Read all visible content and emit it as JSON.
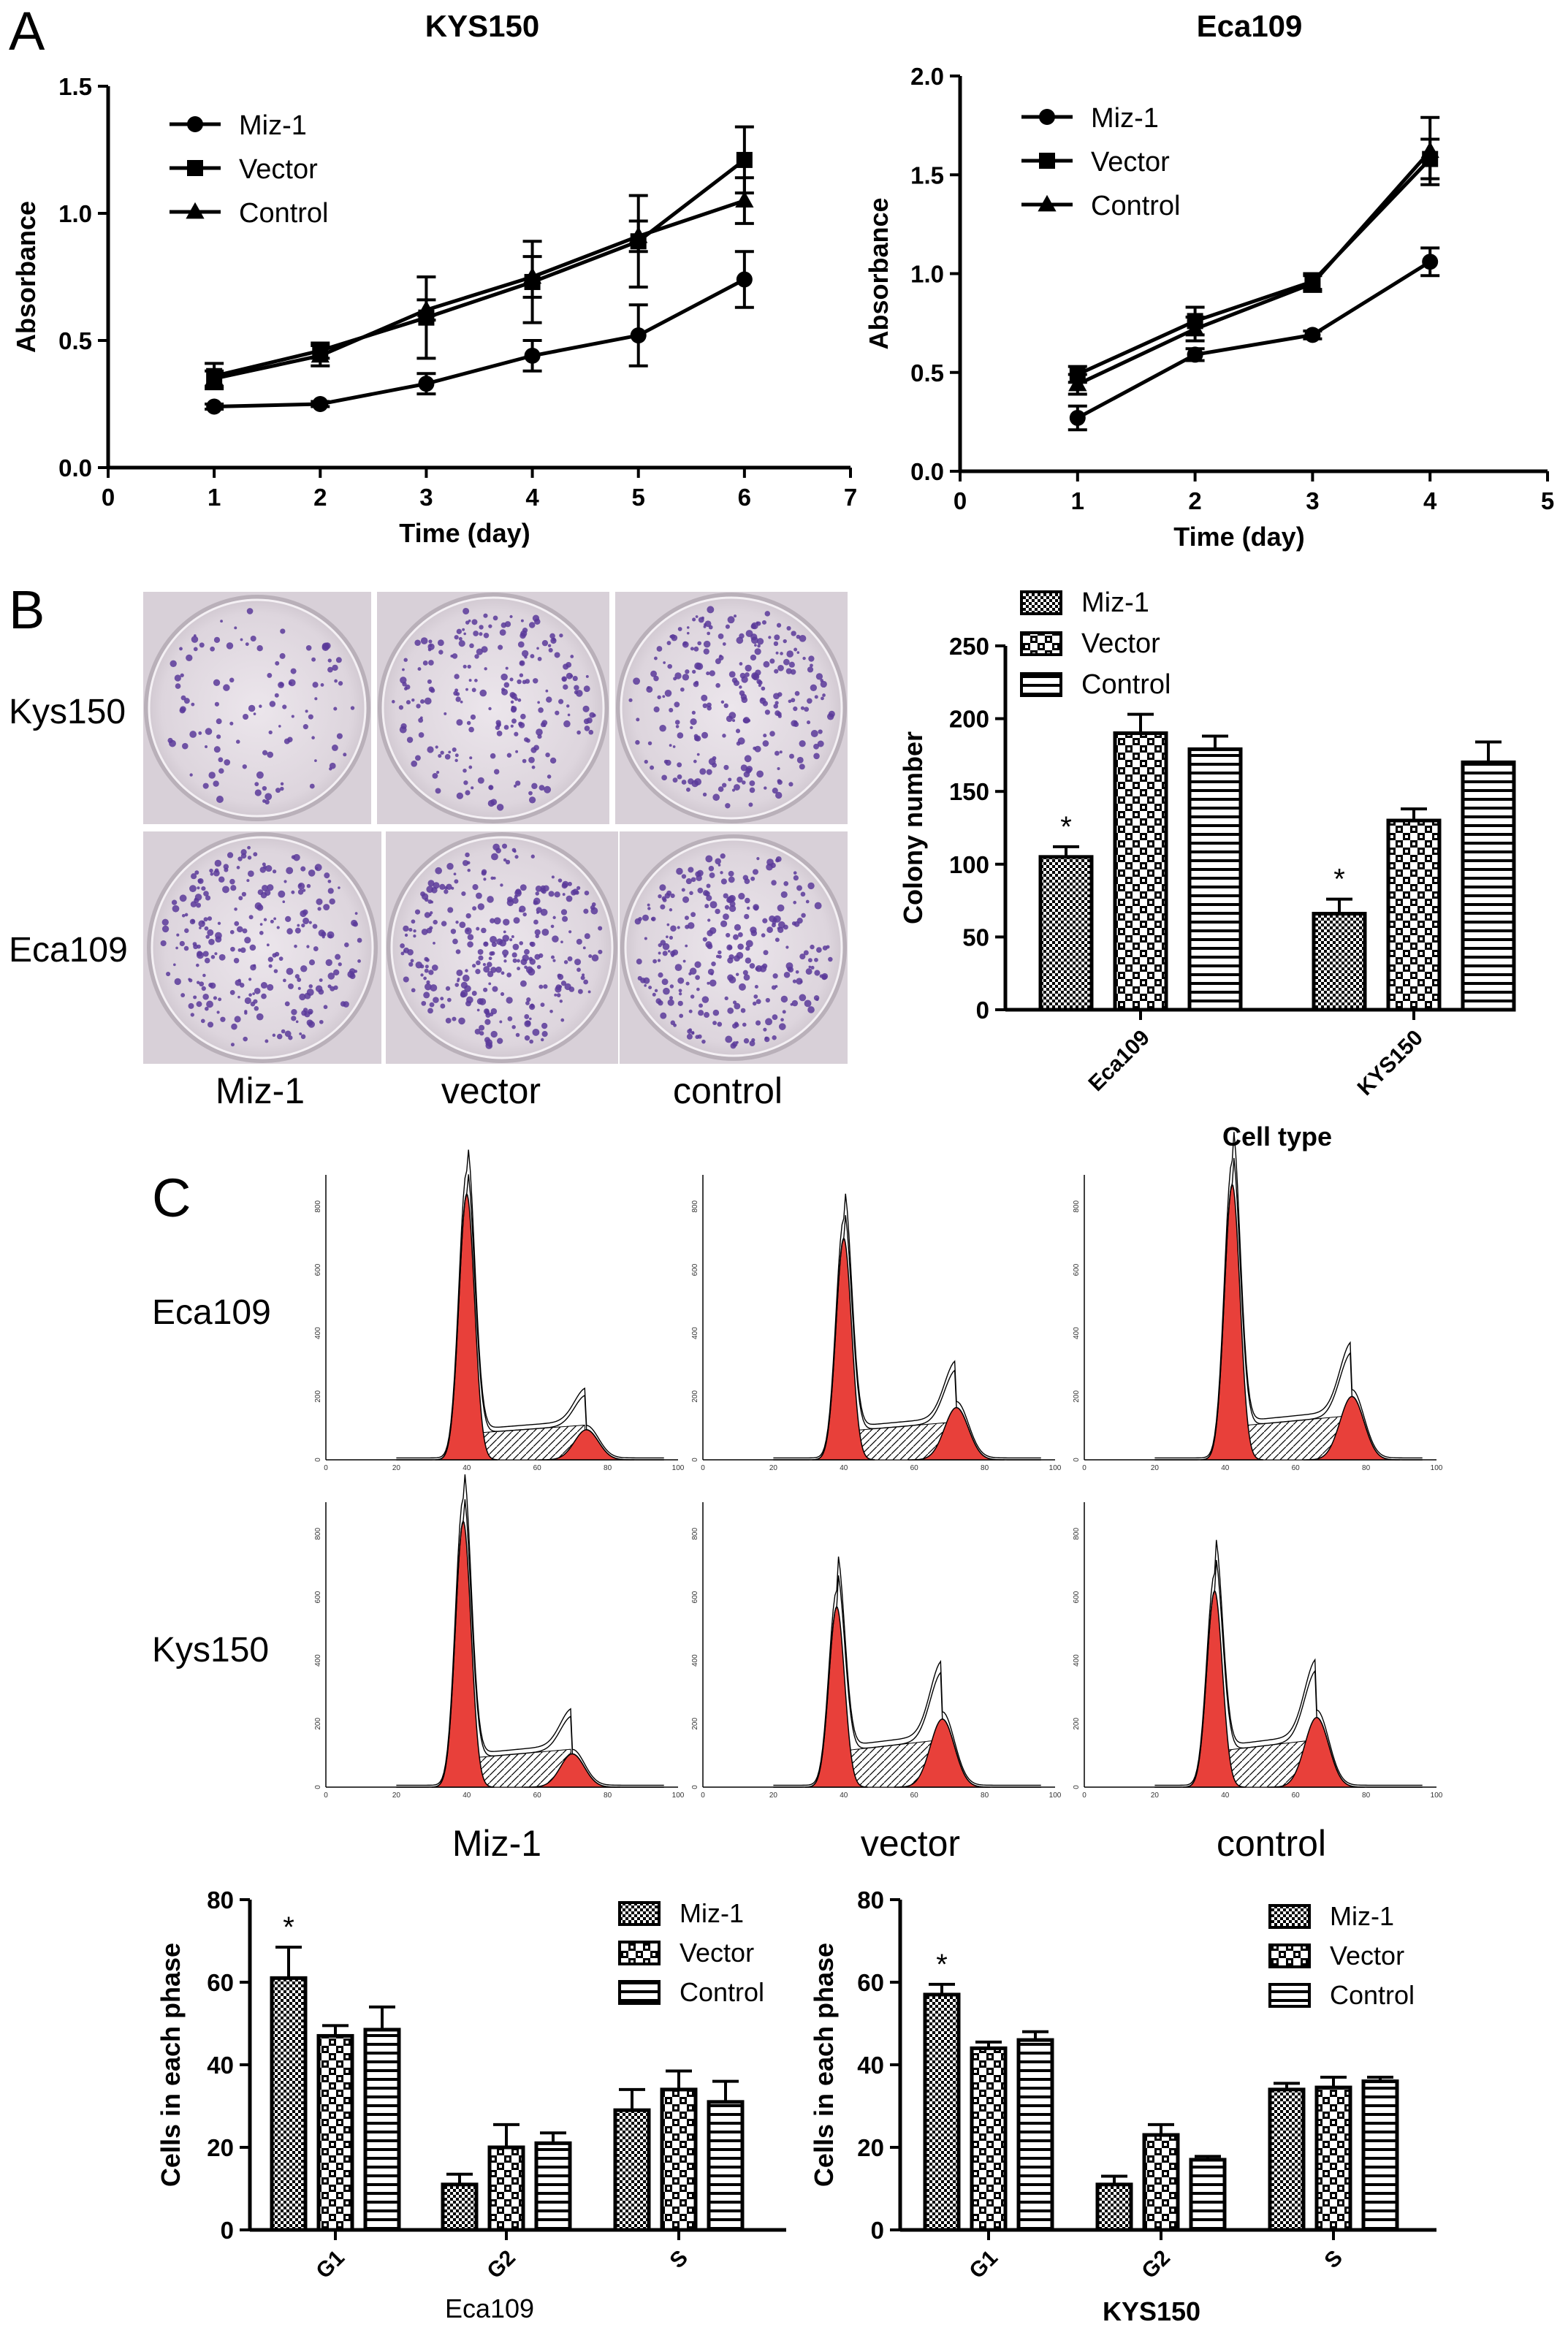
{
  "panels": {
    "a": "A",
    "b": "B",
    "c": "C"
  },
  "markers": [
    "circle",
    "square",
    "triangle"
  ],
  "colors": {
    "peak": "#e8403a",
    "plate_bg": "#d8d0d8",
    "colony": "#5a3a9a"
  },
  "chart_data": [
    {
      "id": "growth-kys150",
      "type": "line",
      "title": "KYS150",
      "xlabel": "Time (day)",
      "ylabel": "Absorbance",
      "xlim": [
        0,
        7
      ],
      "ylim": [
        0,
        1.5
      ],
      "xticks": [
        0,
        1,
        2,
        3,
        4,
        5,
        6,
        7
      ],
      "yticks": [
        "0.0",
        "0.5",
        "1.0",
        "1.5"
      ],
      "legend_position": "top-left",
      "series": [
        {
          "name": "Miz-1",
          "marker": "circle",
          "x": [
            1,
            2,
            3,
            4,
            5,
            6
          ],
          "y": [
            0.24,
            0.25,
            0.33,
            0.44,
            0.52,
            0.74
          ],
          "err": [
            0.01,
            0.01,
            0.04,
            0.06,
            0.12,
            0.11
          ]
        },
        {
          "name": "Vector",
          "marker": "square",
          "x": [
            1,
            2,
            3,
            4,
            5,
            6
          ],
          "y": [
            0.36,
            0.46,
            0.59,
            0.73,
            0.89,
            1.21
          ],
          "err": [
            0.05,
            0.03,
            0.16,
            0.16,
            0.18,
            0.13
          ]
        },
        {
          "name": "Control",
          "marker": "triangle",
          "x": [
            1,
            2,
            3,
            4,
            5,
            6
          ],
          "y": [
            0.35,
            0.44,
            0.62,
            0.75,
            0.91,
            1.05
          ],
          "err": [
            0.03,
            0.04,
            0.04,
            0.08,
            0.06,
            0.09
          ]
        }
      ]
    },
    {
      "id": "growth-eca109",
      "type": "line",
      "title": "Eca109",
      "xlabel": "Time (day)",
      "ylabel": "Absorbance",
      "xlim": [
        0,
        5
      ],
      "ylim": [
        0,
        2.0
      ],
      "xticks": [
        0,
        1,
        2,
        3,
        4,
        5
      ],
      "yticks": [
        "0.0",
        "0.5",
        "1.0",
        "1.5",
        "2.0"
      ],
      "legend_position": "top-left",
      "series": [
        {
          "name": "Miz-1",
          "marker": "circle",
          "x": [
            1,
            2,
            3,
            4
          ],
          "y": [
            0.27,
            0.59,
            0.69,
            1.06
          ],
          "err": [
            0.06,
            0.03,
            0.02,
            0.07
          ]
        },
        {
          "name": "Vector",
          "marker": "square",
          "x": [
            1,
            2,
            3,
            4
          ],
          "y": [
            0.49,
            0.76,
            0.96,
            1.58
          ],
          "err": [
            0.04,
            0.07,
            0.04,
            0.1
          ]
        },
        {
          "name": "Control",
          "marker": "triangle",
          "x": [
            1,
            2,
            3,
            4
          ],
          "y": [
            0.44,
            0.72,
            0.95,
            1.62
          ],
          "err": [
            0.05,
            0.06,
            0.04,
            0.17
          ]
        }
      ]
    },
    {
      "id": "colony-bars",
      "type": "bar",
      "xlabel": "Cell type",
      "ylabel": "Colony number",
      "ylim": [
        0,
        250
      ],
      "yticks": [
        "0",
        "50",
        "100",
        "150",
        "200",
        "250"
      ],
      "categories": [
        "Eca109",
        "KYS150"
      ],
      "legend_position": "top",
      "series": [
        {
          "name": "Miz-1",
          "pattern": "dots",
          "values": [
            105,
            66
          ],
          "err": [
            7,
            10
          ]
        },
        {
          "name": "Vector",
          "pattern": "checks",
          "values": [
            190,
            130
          ],
          "err": [
            13,
            8
          ]
        },
        {
          "name": "Control",
          "pattern": "hlines",
          "values": [
            179,
            170
          ],
          "err": [
            9,
            14
          ]
        }
      ],
      "annotations": [
        "*",
        "*"
      ]
    },
    {
      "id": "phase-eca109",
      "type": "bar",
      "xlabel": "Eca109",
      "ylabel": "Cells in each phase",
      "ylim": [
        0,
        80
      ],
      "yticks": [
        "0",
        "20",
        "40",
        "60",
        "80"
      ],
      "categories": [
        "G1",
        "G2",
        "S"
      ],
      "legend_position": "top-right",
      "series": [
        {
          "name": "Miz-1",
          "pattern": "dots",
          "values": [
            61,
            11,
            29
          ],
          "err": [
            7.5,
            2.5,
            5
          ]
        },
        {
          "name": "Vector",
          "pattern": "checks",
          "values": [
            47,
            20,
            34
          ],
          "err": [
            2.5,
            5.5,
            4.5
          ]
        },
        {
          "name": "Control",
          "pattern": "hlines",
          "values": [
            48.5,
            21,
            31
          ],
          "err": [
            5.5,
            2.5,
            5
          ]
        }
      ],
      "annotations": [
        "*"
      ]
    },
    {
      "id": "phase-kys150",
      "type": "bar",
      "xlabel": "KYS150",
      "ylabel": "Cells in each phase",
      "ylim": [
        0,
        80
      ],
      "yticks": [
        "0",
        "20",
        "40",
        "60",
        "80"
      ],
      "categories": [
        "G1",
        "G2",
        "S"
      ],
      "legend_position": "top-right",
      "series": [
        {
          "name": "Miz-1",
          "pattern": "dots",
          "values": [
            57,
            11,
            34
          ],
          "err": [
            2.5,
            2,
            1.5
          ]
        },
        {
          "name": "Vector",
          "pattern": "checks",
          "values": [
            44,
            23,
            34.5
          ],
          "err": [
            1.5,
            2.5,
            2.5
          ]
        },
        {
          "name": "Control",
          "pattern": "hlines",
          "values": [
            46,
            17,
            36
          ],
          "err": [
            2,
            0.8,
            1
          ]
        }
      ],
      "annotations": [
        "*"
      ]
    }
  ],
  "colony_images": {
    "row_labels": [
      "Kys150",
      "Eca109"
    ],
    "col_labels": [
      "Miz-1",
      "vector",
      "control"
    ]
  },
  "flow_histograms": {
    "row_labels": [
      "Eca109",
      "Kys150"
    ],
    "col_labels": [
      "Miz-1",
      "vector",
      "control"
    ],
    "x_ticks": [
      "0",
      "20",
      "40",
      "60",
      "80",
      "100"
    ],
    "y_ticks": [
      "0",
      "200",
      "400",
      "600",
      "800"
    ],
    "panels": [
      {
        "row": 0,
        "col": 0,
        "g1_pos": 40,
        "g1_h": 840,
        "g2_pos": 74,
        "g2_h": 95,
        "s_h": 110
      },
      {
        "row": 0,
        "col": 1,
        "g1_pos": 40,
        "g1_h": 700,
        "g2_pos": 72,
        "g2_h": 165,
        "s_h": 120
      },
      {
        "row": 0,
        "col": 2,
        "g1_pos": 42,
        "g1_h": 870,
        "g2_pos": 76,
        "g2_h": 200,
        "s_h": 140
      },
      {
        "row": 1,
        "col": 0,
        "g1_pos": 39,
        "g1_h": 840,
        "g2_pos": 70,
        "g2_h": 105,
        "s_h": 120
      },
      {
        "row": 1,
        "col": 1,
        "g1_pos": 38,
        "g1_h": 570,
        "g2_pos": 68,
        "g2_h": 215,
        "s_h": 150
      },
      {
        "row": 1,
        "col": 2,
        "g1_pos": 37,
        "g1_h": 620,
        "g2_pos": 66,
        "g2_h": 220,
        "s_h": 150
      }
    ]
  }
}
